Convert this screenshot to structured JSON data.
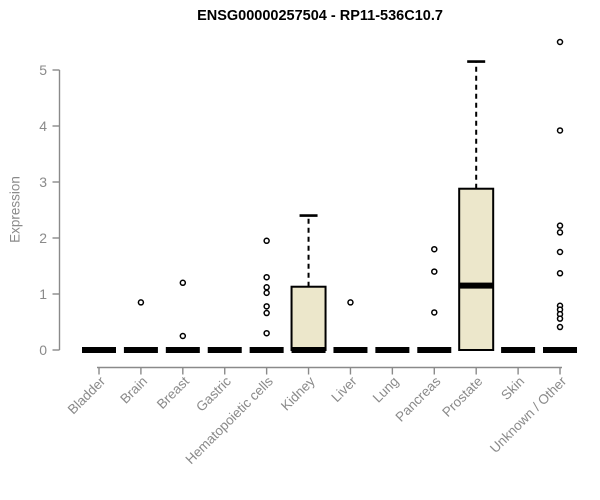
{
  "chart_data": {
    "type": "boxplot",
    "title": "ENSG00000257504 - RP11-536C10.7",
    "xlabel": "",
    "ylabel": "Expression",
    "ylim": [
      0,
      5.6
    ],
    "yticks": [
      0,
      1,
      2,
      3,
      4,
      5
    ],
    "grid": false,
    "legend": "none",
    "colors": {
      "box_fill": "#ece7cb",
      "box_stroke": "#000000",
      "median": "#000000",
      "outlier_stroke": "#000000",
      "axis": "#8a8a8a",
      "title": "#000000",
      "background": "#ffffff"
    },
    "categories": [
      "Bladder",
      "Brain",
      "Breast",
      "Gastric",
      "Hematopoietic cells",
      "Kidney",
      "Liver",
      "Lung",
      "Pancreas",
      "Prostate",
      "Skin",
      "Unknown / Other"
    ],
    "series": [
      {
        "category": "Bladder",
        "q1": 0,
        "median": 0,
        "q3": 0,
        "whisker_low": 0,
        "whisker_high": 0,
        "outliers": []
      },
      {
        "category": "Brain",
        "q1": 0,
        "median": 0,
        "q3": 0,
        "whisker_low": 0,
        "whisker_high": 0,
        "outliers": [
          0.85
        ]
      },
      {
        "category": "Breast",
        "q1": 0,
        "median": 0,
        "q3": 0,
        "whisker_low": 0,
        "whisker_high": 0,
        "outliers": [
          1.2,
          0.25
        ]
      },
      {
        "category": "Gastric",
        "q1": 0,
        "median": 0,
        "q3": 0,
        "whisker_low": 0,
        "whisker_high": 0,
        "outliers": []
      },
      {
        "category": "Hematopoietic cells",
        "q1": 0,
        "median": 0,
        "q3": 0,
        "whisker_low": 0,
        "whisker_high": 0,
        "outliers": [
          1.95,
          1.3,
          1.12,
          1.02,
          0.78,
          0.66,
          0.3
        ]
      },
      {
        "category": "Kidney",
        "q1": 0,
        "median": 0,
        "q3": 1.13,
        "whisker_low": 0,
        "whisker_high": 2.4,
        "outliers": []
      },
      {
        "category": "Liver",
        "q1": 0,
        "median": 0,
        "q3": 0,
        "whisker_low": 0,
        "whisker_high": 0,
        "outliers": [
          0.85
        ]
      },
      {
        "category": "Lung",
        "q1": 0,
        "median": 0,
        "q3": 0,
        "whisker_low": 0,
        "whisker_high": 0,
        "outliers": []
      },
      {
        "category": "Pancreas",
        "q1": 0,
        "median": 0,
        "q3": 0,
        "whisker_low": 0,
        "whisker_high": 0,
        "outliers": [
          1.8,
          1.4,
          0.67
        ]
      },
      {
        "category": "Prostate",
        "q1": 0,
        "median": 1.15,
        "q3": 2.88,
        "whisker_low": 0,
        "whisker_high": 5.15,
        "outliers": []
      },
      {
        "category": "Skin",
        "q1": 0,
        "median": 0,
        "q3": 0,
        "whisker_low": 0,
        "whisker_high": 0,
        "outliers": []
      },
      {
        "category": "Unknown / Other",
        "q1": 0,
        "median": 0,
        "q3": 0,
        "whisker_low": 0,
        "whisker_high": 0,
        "outliers": [
          5.5,
          3.92,
          2.22,
          2.1,
          1.75,
          1.37,
          0.79,
          0.72,
          0.64,
          0.56,
          0.41
        ]
      }
    ]
  }
}
